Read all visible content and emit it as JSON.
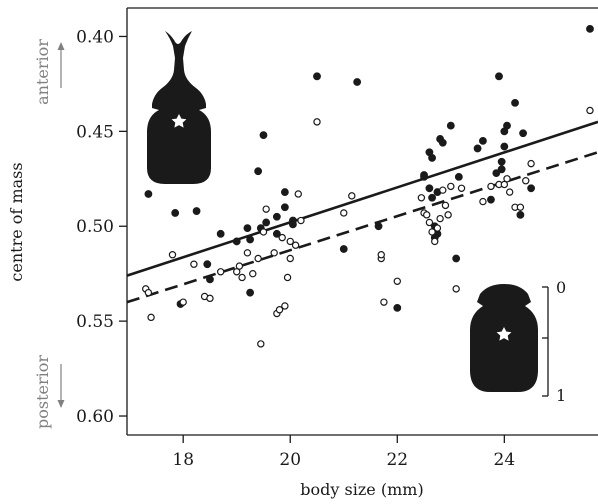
{
  "chart_data": {
    "type": "scatter",
    "title": "",
    "xlabel": "body size (mm)",
    "ylabel": "centre of mass",
    "xlim": [
      16.95,
      25.75
    ],
    "ylim": [
      0.385,
      0.61
    ],
    "y_reversed": true,
    "xticks": [
      18,
      20,
      22,
      24
    ],
    "yticks": [
      0.4,
      0.45,
      0.5,
      0.55,
      0.6
    ],
    "xtick_labels": [
      "18",
      "20",
      "22",
      "24"
    ],
    "ytick_labels": [
      "0.40",
      "0.45",
      "0.50",
      "0.55",
      "0.60"
    ],
    "grid": false,
    "legend": "none",
    "direction_labels": {
      "top": "anterior",
      "bottom": "posterior"
    },
    "scale_bar": {
      "top_label": "0",
      "bottom_label": "1"
    },
    "colors": {
      "ink": "#1a1a1a",
      "direction_text": "#808080",
      "background": "#ffffff"
    },
    "series": [
      {
        "marker": "filled-circle",
        "line_style": "solid",
        "fit": {
          "x": [
            16.95,
            25.75
          ],
          "y": [
            0.526,
            0.445
          ]
        },
        "points": [
          [
            17.35,
            0.483
          ],
          [
            17.85,
            0.493
          ],
          [
            18.25,
            0.492
          ],
          [
            17.95,
            0.541
          ],
          [
            18.45,
            0.52
          ],
          [
            18.5,
            0.528
          ],
          [
            18.7,
            0.504
          ],
          [
            19.0,
            0.508
          ],
          [
            19.2,
            0.501
          ],
          [
            19.25,
            0.507
          ],
          [
            19.25,
            0.535
          ],
          [
            19.4,
            0.471
          ],
          [
            19.45,
            0.501
          ],
          [
            19.5,
            0.452
          ],
          [
            19.55,
            0.498
          ],
          [
            19.75,
            0.504
          ],
          [
            19.75,
            0.495
          ],
          [
            19.9,
            0.482
          ],
          [
            19.9,
            0.49
          ],
          [
            20.05,
            0.497
          ],
          [
            20.05,
            0.499
          ],
          [
            20.5,
            0.421
          ],
          [
            21.0,
            0.512
          ],
          [
            21.25,
            0.424
          ],
          [
            21.65,
            0.5
          ],
          [
            22.0,
            0.543
          ],
          [
            22.5,
            0.473
          ],
          [
            22.5,
            0.474
          ],
          [
            22.6,
            0.48
          ],
          [
            22.6,
            0.461
          ],
          [
            22.65,
            0.464
          ],
          [
            22.65,
            0.485
          ],
          [
            22.7,
            0.5
          ],
          [
            22.7,
            0.506
          ],
          [
            22.75,
            0.504
          ],
          [
            22.75,
            0.482
          ],
          [
            22.8,
            0.454
          ],
          [
            22.85,
            0.456
          ],
          [
            23.0,
            0.447
          ],
          [
            23.1,
            0.517
          ],
          [
            23.15,
            0.474
          ],
          [
            23.5,
            0.459
          ],
          [
            23.6,
            0.455
          ],
          [
            23.75,
            0.486
          ],
          [
            23.85,
            0.472
          ],
          [
            23.9,
            0.421
          ],
          [
            23.95,
            0.47
          ],
          [
            23.95,
            0.466
          ],
          [
            24.0,
            0.45
          ],
          [
            24.0,
            0.458
          ],
          [
            24.05,
            0.447
          ],
          [
            24.2,
            0.435
          ],
          [
            24.3,
            0.494
          ],
          [
            24.35,
            0.451
          ],
          [
            24.5,
            0.48
          ],
          [
            25.6,
            0.396
          ]
        ]
      },
      {
        "marker": "open-circle",
        "line_style": "dashed",
        "fit": {
          "x": [
            16.95,
            25.75
          ],
          "y": [
            0.54,
            0.461
          ]
        },
        "points": [
          [
            17.3,
            0.533
          ],
          [
            17.35,
            0.535
          ],
          [
            17.4,
            0.548
          ],
          [
            17.8,
            0.515
          ],
          [
            18.0,
            0.54
          ],
          [
            18.2,
            0.52
          ],
          [
            18.4,
            0.537
          ],
          [
            18.5,
            0.538
          ],
          [
            18.7,
            0.524
          ],
          [
            19.0,
            0.524
          ],
          [
            19.05,
            0.521
          ],
          [
            19.1,
            0.527
          ],
          [
            19.2,
            0.514
          ],
          [
            19.3,
            0.525
          ],
          [
            19.4,
            0.517
          ],
          [
            19.45,
            0.562
          ],
          [
            19.5,
            0.503
          ],
          [
            19.55,
            0.491
          ],
          [
            19.7,
            0.514
          ],
          [
            19.75,
            0.546
          ],
          [
            19.8,
            0.544
          ],
          [
            19.85,
            0.506
          ],
          [
            19.9,
            0.542
          ],
          [
            19.95,
            0.527
          ],
          [
            20.0,
            0.517
          ],
          [
            20.0,
            0.508
          ],
          [
            20.1,
            0.51
          ],
          [
            20.15,
            0.483
          ],
          [
            20.2,
            0.497
          ],
          [
            20.5,
            0.445
          ],
          [
            21.0,
            0.493
          ],
          [
            21.15,
            0.484
          ],
          [
            21.7,
            0.517
          ],
          [
            21.7,
            0.515
          ],
          [
            21.75,
            0.54
          ],
          [
            22.0,
            0.529
          ],
          [
            22.45,
            0.485
          ],
          [
            22.5,
            0.493
          ],
          [
            22.55,
            0.494
          ],
          [
            22.6,
            0.498
          ],
          [
            22.65,
            0.503
          ],
          [
            22.7,
            0.508
          ],
          [
            22.75,
            0.501
          ],
          [
            22.8,
            0.496
          ],
          [
            22.85,
            0.481
          ],
          [
            22.9,
            0.489
          ],
          [
            22.95,
            0.494
          ],
          [
            23.0,
            0.479
          ],
          [
            23.1,
            0.533
          ],
          [
            23.2,
            0.48
          ],
          [
            23.6,
            0.487
          ],
          [
            23.75,
            0.479
          ],
          [
            23.9,
            0.478
          ],
          [
            24.0,
            0.478
          ],
          [
            24.05,
            0.475
          ],
          [
            24.1,
            0.482
          ],
          [
            24.2,
            0.49
          ],
          [
            24.3,
            0.49
          ],
          [
            24.4,
            0.476
          ],
          [
            24.5,
            0.467
          ],
          [
            25.6,
            0.439
          ]
        ]
      }
    ]
  }
}
